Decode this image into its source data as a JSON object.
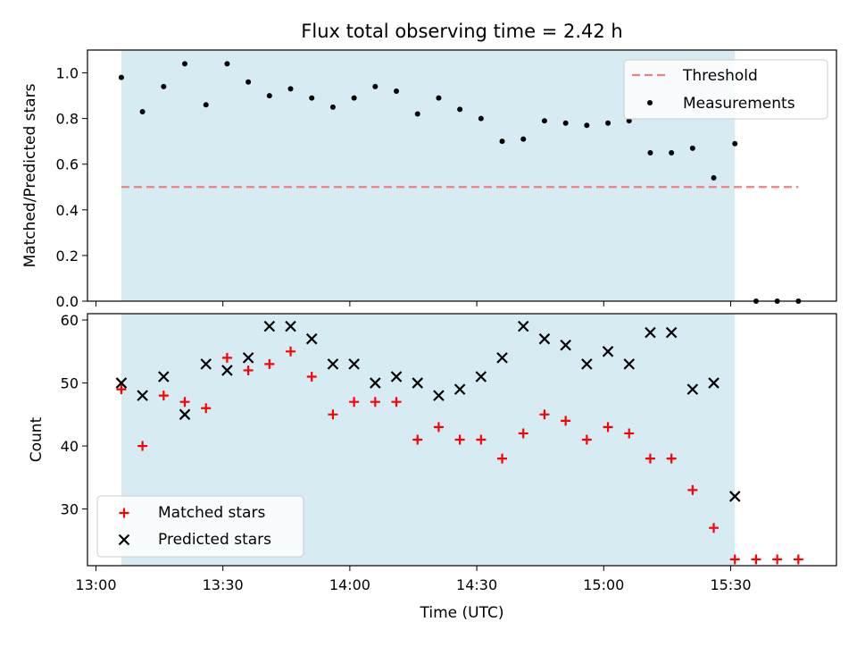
{
  "title": "Flux total observing time = 2.42 h",
  "colors": {
    "shade": "#add8e6",
    "threshold": "#f08080",
    "measurements": "#000000",
    "matched": "#ff0000",
    "predicted": "#000000"
  },
  "chart_data": [
    {
      "type": "scatter",
      "panel": "top",
      "ylabel": "Matched/Predicted stars",
      "xlim": [
        "12:58",
        "15:55"
      ],
      "ylim": [
        0,
        1.1
      ],
      "yticks": [
        0.0,
        0.2,
        0.4,
        0.6,
        0.8,
        1.0
      ],
      "ytick_labels": [
        "0.0",
        "0.2",
        "0.4",
        "0.6",
        "0.8",
        "1.0"
      ],
      "shaded_span": [
        "13:06",
        "15:31"
      ],
      "legend": {
        "position": "top-right",
        "entries": [
          "Threshold",
          "Measurements"
        ]
      },
      "threshold": {
        "name": "Threshold",
        "value": 0.5,
        "x_range": [
          "13:06",
          "15:46"
        ],
        "style": "dashed"
      },
      "series": [
        {
          "name": "Measurements",
          "marker": "dot",
          "points": [
            [
              "13:06",
              0.98
            ],
            [
              "13:11",
              0.83
            ],
            [
              "13:16",
              0.94
            ],
            [
              "13:21",
              1.04
            ],
            [
              "13:26",
              0.86
            ],
            [
              "13:31",
              1.04
            ],
            [
              "13:36",
              0.96
            ],
            [
              "13:41",
              0.9
            ],
            [
              "13:46",
              0.93
            ],
            [
              "13:51",
              0.89
            ],
            [
              "13:56",
              0.85
            ],
            [
              "14:01",
              0.89
            ],
            [
              "14:06",
              0.94
            ],
            [
              "14:11",
              0.92
            ],
            [
              "14:16",
              0.82
            ],
            [
              "14:21",
              0.89
            ],
            [
              "14:26",
              0.84
            ],
            [
              "14:31",
              0.8
            ],
            [
              "14:36",
              0.7
            ],
            [
              "14:41",
              0.71
            ],
            [
              "14:46",
              0.79
            ],
            [
              "14:51",
              0.78
            ],
            [
              "14:56",
              0.77
            ],
            [
              "15:01",
              0.78
            ],
            [
              "15:06",
              0.79
            ],
            [
              "15:11",
              0.65
            ],
            [
              "15:16",
              0.65
            ],
            [
              "15:21",
              0.67
            ],
            [
              "15:26",
              0.54
            ],
            [
              "15:31",
              0.69
            ],
            [
              "15:36",
              0.0
            ],
            [
              "15:41",
              0.0
            ],
            [
              "15:46",
              0.0
            ]
          ]
        }
      ]
    },
    {
      "type": "scatter",
      "panel": "bottom",
      "xlabel": "Time (UTC)",
      "ylabel": "Count",
      "xlim": [
        "12:58",
        "15:55"
      ],
      "ylim": [
        21,
        61
      ],
      "xticks": [
        "13:00",
        "13:30",
        "14:00",
        "14:30",
        "15:00",
        "15:30"
      ],
      "yticks": [
        30,
        40,
        50,
        60
      ],
      "shaded_span": [
        "13:06",
        "15:31"
      ],
      "legend": {
        "position": "bottom-left",
        "entries": [
          "Matched stars",
          "Predicted stars"
        ]
      },
      "series": [
        {
          "name": "Matched stars",
          "marker": "plus",
          "points": [
            [
              "13:06",
              49
            ],
            [
              "13:11",
              40
            ],
            [
              "13:16",
              48
            ],
            [
              "13:21",
              47
            ],
            [
              "13:26",
              46
            ],
            [
              "13:31",
              54
            ],
            [
              "13:36",
              52
            ],
            [
              "13:41",
              53
            ],
            [
              "13:46",
              55
            ],
            [
              "13:51",
              51
            ],
            [
              "13:56",
              45
            ],
            [
              "14:01",
              47
            ],
            [
              "14:06",
              47
            ],
            [
              "14:11",
              47
            ],
            [
              "14:16",
              41
            ],
            [
              "14:21",
              43
            ],
            [
              "14:26",
              41
            ],
            [
              "14:31",
              41
            ],
            [
              "14:36",
              38
            ],
            [
              "14:41",
              42
            ],
            [
              "14:46",
              45
            ],
            [
              "14:51",
              44
            ],
            [
              "14:56",
              41
            ],
            [
              "15:01",
              43
            ],
            [
              "15:06",
              42
            ],
            [
              "15:11",
              38
            ],
            [
              "15:16",
              38
            ],
            [
              "15:21",
              33
            ],
            [
              "15:26",
              27
            ],
            [
              "15:31",
              22
            ],
            [
              "15:36",
              22
            ],
            [
              "15:41",
              22
            ],
            [
              "15:46",
              22
            ]
          ]
        },
        {
          "name": "Predicted stars",
          "marker": "x",
          "points": [
            [
              "13:06",
              50
            ],
            [
              "13:11",
              48
            ],
            [
              "13:16",
              51
            ],
            [
              "13:21",
              45
            ],
            [
              "13:26",
              53
            ],
            [
              "13:31",
              52
            ],
            [
              "13:36",
              54
            ],
            [
              "13:41",
              59
            ],
            [
              "13:46",
              59
            ],
            [
              "13:51",
              57
            ],
            [
              "13:56",
              53
            ],
            [
              "14:01",
              53
            ],
            [
              "14:06",
              50
            ],
            [
              "14:11",
              51
            ],
            [
              "14:16",
              50
            ],
            [
              "14:21",
              48
            ],
            [
              "14:26",
              49
            ],
            [
              "14:31",
              51
            ],
            [
              "14:36",
              54
            ],
            [
              "14:41",
              59
            ],
            [
              "14:46",
              57
            ],
            [
              "14:51",
              56
            ],
            [
              "14:56",
              53
            ],
            [
              "15:01",
              55
            ],
            [
              "15:06",
              53
            ],
            [
              "15:11",
              58
            ],
            [
              "15:16",
              58
            ],
            [
              "15:21",
              49
            ],
            [
              "15:26",
              50
            ],
            [
              "15:31",
              32
            ]
          ]
        }
      ]
    }
  ]
}
